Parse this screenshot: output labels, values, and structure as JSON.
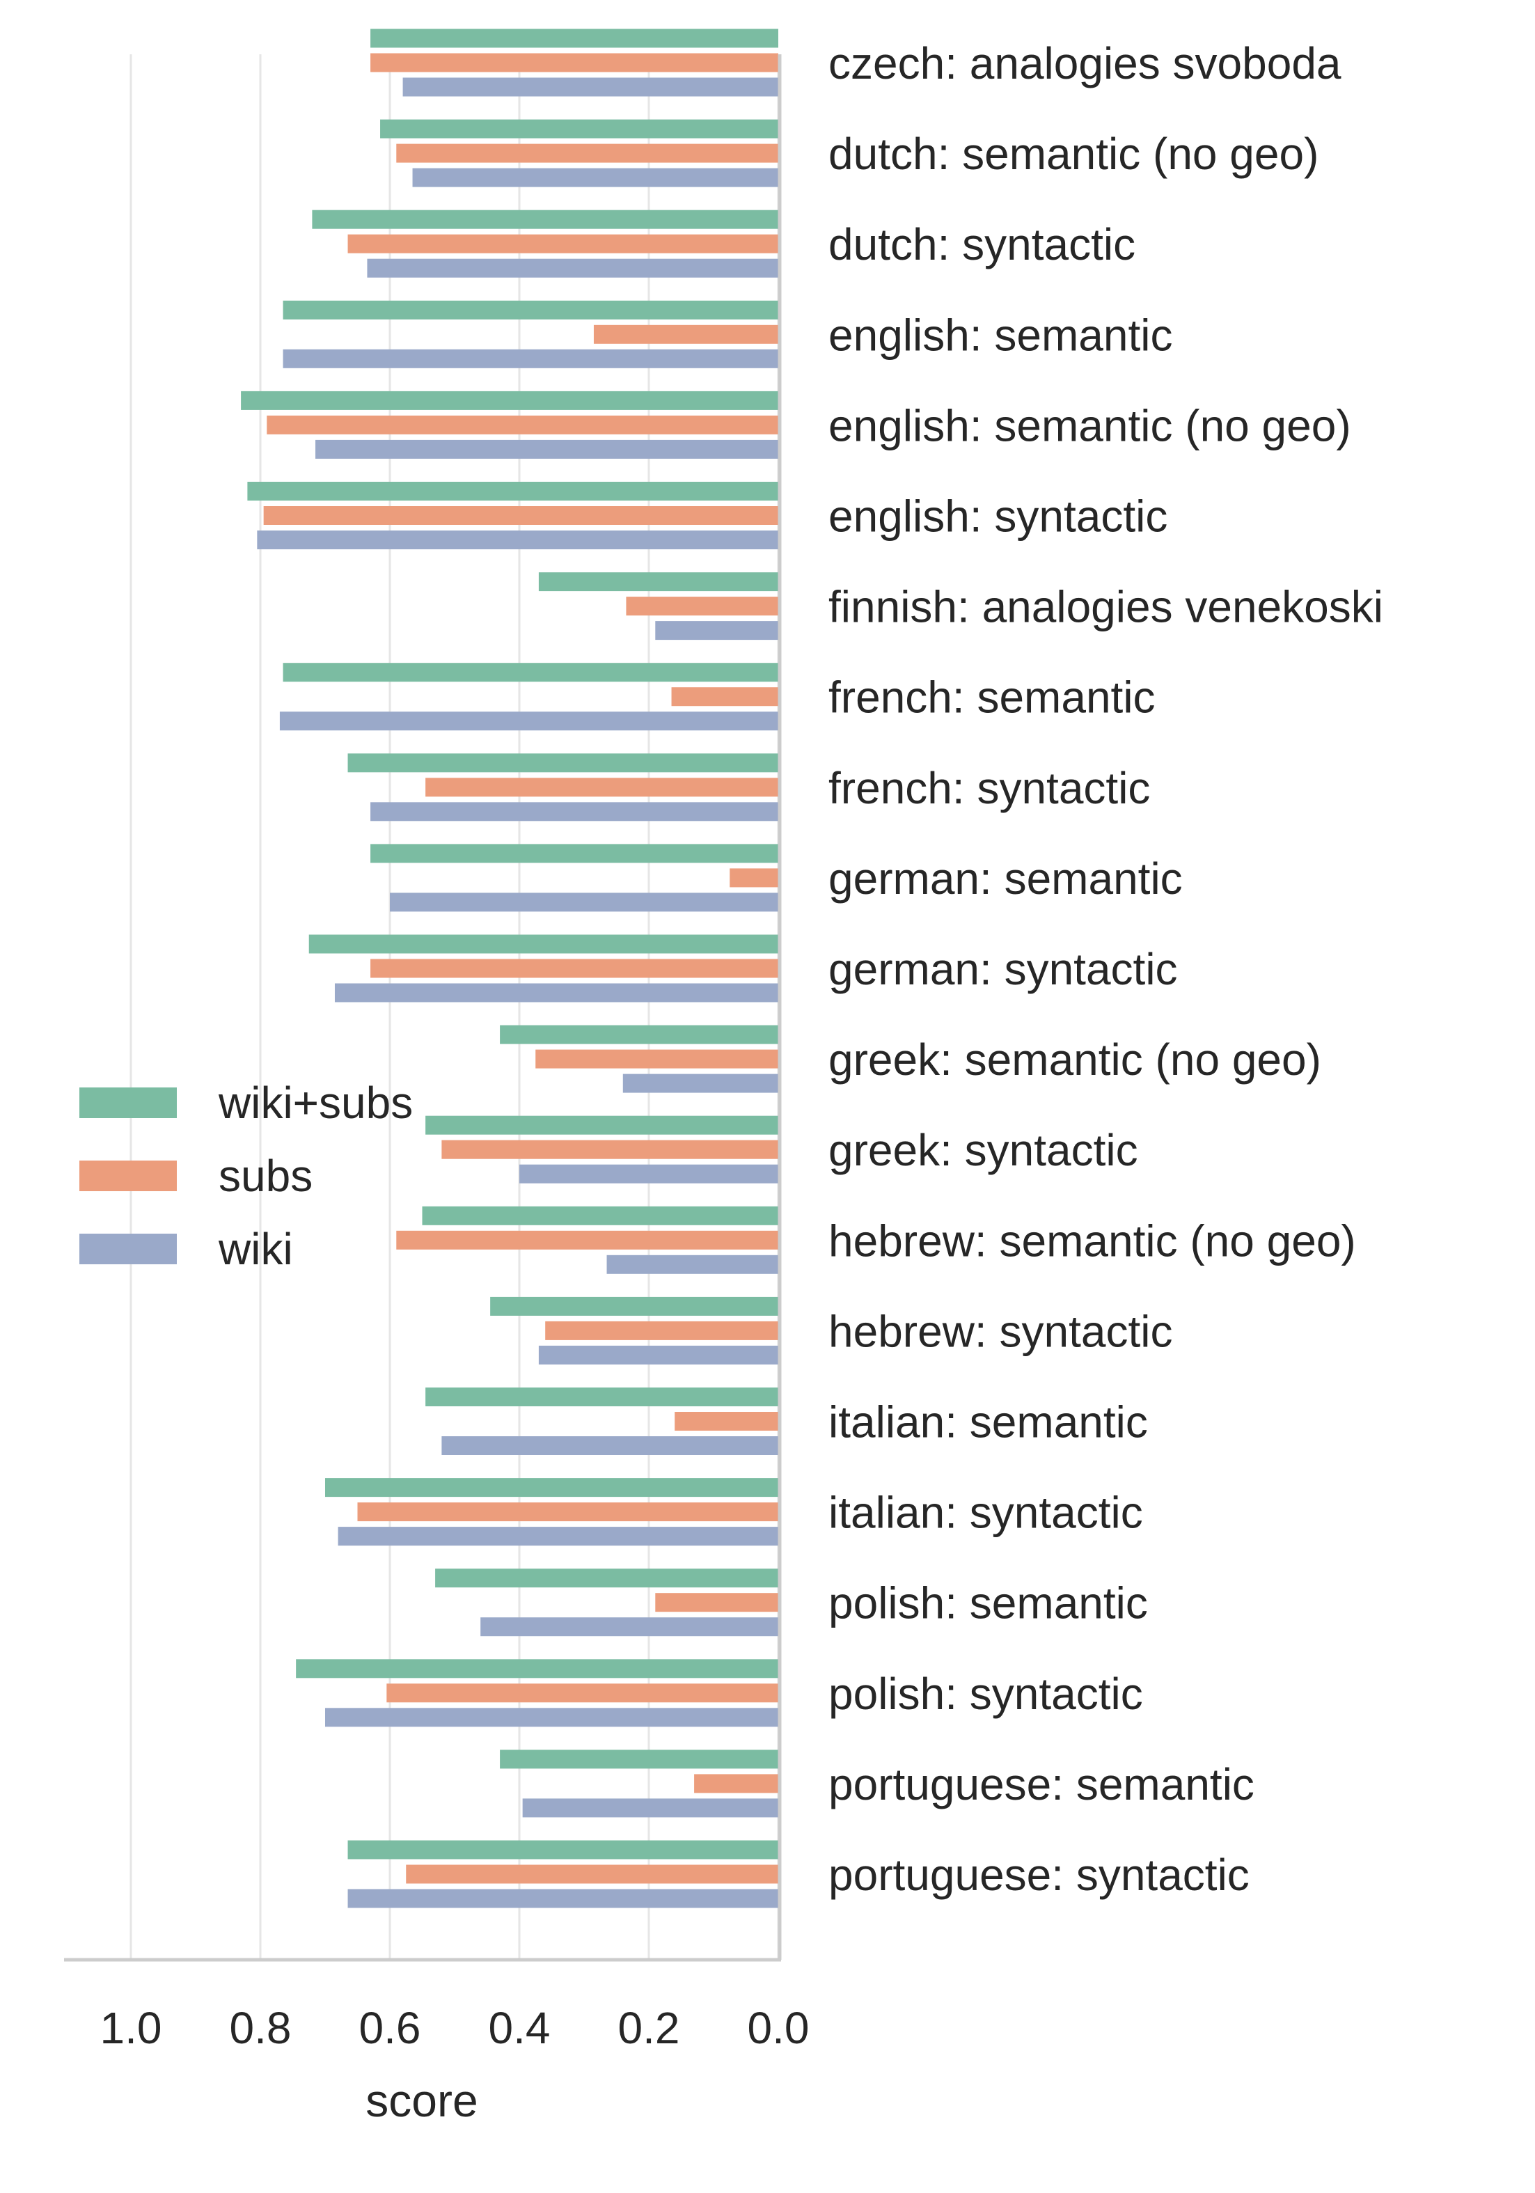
{
  "chart_data": {
    "type": "bar",
    "orientation": "horizontal",
    "x_axis_inverted": true,
    "categories": [
      "czech: analogies svoboda",
      "dutch: semantic (no geo)",
      "dutch: syntactic",
      "english: semantic",
      "english: semantic (no geo)",
      "english: syntactic",
      "finnish: analogies venekoski",
      "french: semantic",
      "french: syntactic",
      "german: semantic",
      "german: syntactic",
      "greek: semantic (no geo)",
      "greek: syntactic",
      "hebrew: semantic (no geo)",
      "hebrew: syntactic",
      "italian: semantic",
      "italian: syntactic",
      "polish: semantic",
      "polish: syntactic",
      "portuguese: semantic",
      "portuguese: syntactic"
    ],
    "series": [
      {
        "name": "wiki+subs",
        "color": "#7bbca2",
        "values": [
          0.63,
          0.615,
          0.72,
          0.765,
          0.83,
          0.82,
          0.37,
          0.765,
          0.665,
          0.63,
          0.725,
          0.43,
          0.545,
          0.55,
          0.445,
          0.545,
          0.7,
          0.53,
          0.745,
          0.43,
          0.665
        ]
      },
      {
        "name": "subs",
        "color": "#ec9d7c",
        "values": [
          0.63,
          0.59,
          0.665,
          0.285,
          0.79,
          0.795,
          0.235,
          0.165,
          0.545,
          0.075,
          0.63,
          0.375,
          0.52,
          0.59,
          0.36,
          0.16,
          0.65,
          0.19,
          0.605,
          0.13,
          0.575
        ]
      },
      {
        "name": "wiki",
        "color": "#9aa9c9",
        "values": [
          0.58,
          0.565,
          0.635,
          0.765,
          0.715,
          0.805,
          0.19,
          0.77,
          0.63,
          0.6,
          0.685,
          0.24,
          0.4,
          0.265,
          0.37,
          0.52,
          0.68,
          0.46,
          0.7,
          0.395,
          0.665
        ]
      }
    ],
    "xlabel": "score",
    "ylabel": "",
    "xlim": [
      1.1,
      0.0
    ],
    "x_ticks": [
      1.0,
      0.8,
      0.6,
      0.4,
      0.2,
      0.0
    ],
    "x_tick_labels": [
      "1.0",
      "0.8",
      "0.6",
      "0.4",
      "0.2",
      "0.0"
    ],
    "grid": "vertical",
    "legend_position": "center-left",
    "legend_entries": [
      "wiki+subs",
      "subs",
      "wiki"
    ]
  }
}
